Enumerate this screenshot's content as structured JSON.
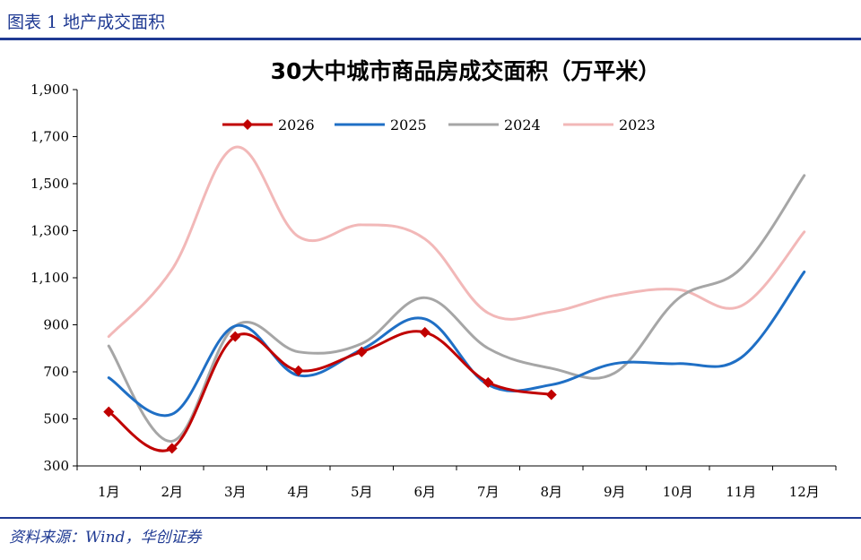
{
  "figure": {
    "title": "图表 1 地产成交面积",
    "source": "资料来源：Wind，华创证券"
  },
  "chart_data": {
    "type": "line",
    "title": "30大中城市商品房成交面积（万平米）",
    "categories": [
      "1月",
      "2月",
      "3月",
      "4月",
      "5月",
      "6月",
      "7月",
      "8月",
      "9月",
      "10月",
      "11月",
      "12月"
    ],
    "ylim": [
      300,
      1900
    ],
    "yticks": [
      300,
      500,
      700,
      900,
      1100,
      1300,
      1500,
      1700,
      1900
    ],
    "ytick_labels": [
      "300",
      "500",
      "700",
      "900",
      "1,100",
      "1,300",
      "1,500",
      "1,700",
      "1,900"
    ],
    "legend_position": "top",
    "grid": false,
    "series": [
      {
        "name": "2026",
        "color": "#c00000",
        "marker": "diamond",
        "values": [
          530,
          375,
          850,
          705,
          785,
          868,
          655,
          603,
          null,
          null,
          null,
          null
        ]
      },
      {
        "name": "2025",
        "color": "#1f6fc5",
        "marker": "none",
        "values": [
          675,
          520,
          895,
          685,
          795,
          925,
          645,
          645,
          735,
          735,
          760,
          1125
        ]
      },
      {
        "name": "2024",
        "color": "#a6a6a6",
        "marker": "none",
        "values": [
          810,
          405,
          895,
          785,
          820,
          1015,
          800,
          715,
          695,
          1010,
          1140,
          1535
        ]
      },
      {
        "name": "2023",
        "color": "#f2b8b8",
        "marker": "none",
        "values": [
          850,
          1135,
          1655,
          1275,
          1325,
          1265,
          950,
          955,
          1025,
          1050,
          980,
          1295
        ]
      }
    ]
  }
}
